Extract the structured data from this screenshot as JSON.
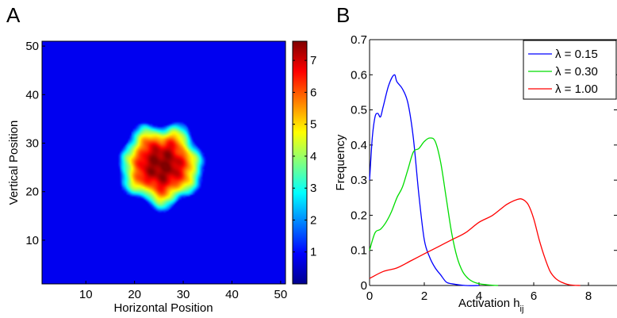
{
  "chart_data": [
    {
      "panel": "A",
      "type": "heatmap",
      "xlabel": "Horizontal Position",
      "ylabel": "Vertical Position",
      "xlim": [
        1,
        51
      ],
      "ylim": [
        1,
        51
      ],
      "xticks": [
        10,
        20,
        30,
        40,
        50
      ],
      "yticks": [
        10,
        20,
        30,
        40,
        50
      ],
      "colorbar": {
        "range": [
          0,
          7.6
        ],
        "ticks": [
          1,
          2,
          3,
          4,
          5,
          6,
          7
        ],
        "colormap": "jet"
      },
      "blob": {
        "center": [
          25.5,
          25.5
        ],
        "peak": 7.5,
        "radius": 9
      }
    },
    {
      "panel": "B",
      "type": "line",
      "xlabel": "Activation h",
      "xlabel_sub": "ij",
      "ylabel": "Frequency",
      "xlim": [
        0,
        9
      ],
      "ylim": [
        0,
        0.7
      ],
      "xticks": [
        0,
        2,
        4,
        6,
        8
      ],
      "yticks": [
        0,
        0.1,
        0.2,
        0.3,
        0.4,
        0.5,
        0.6,
        0.7
      ],
      "legend_position": "top-right",
      "series": [
        {
          "name": "λ = 0.15",
          "color": "#0000ff",
          "x": [
            0,
            0.1,
            0.2,
            0.3,
            0.4,
            0.5,
            0.7,
            0.9,
            1.0,
            1.2,
            1.4,
            1.6,
            1.8,
            2.0,
            2.2,
            2.4,
            2.6,
            2.8,
            3.0,
            3.5,
            4.0
          ],
          "y": [
            0.3,
            0.42,
            0.48,
            0.49,
            0.48,
            0.51,
            0.57,
            0.6,
            0.58,
            0.56,
            0.52,
            0.42,
            0.26,
            0.13,
            0.08,
            0.05,
            0.03,
            0.01,
            0.005,
            0,
            0
          ]
        },
        {
          "name": "λ = 0.30",
          "color": "#00dd00",
          "x": [
            0,
            0.2,
            0.4,
            0.6,
            0.8,
            1.0,
            1.2,
            1.4,
            1.6,
            1.8,
            2.0,
            2.2,
            2.4,
            2.6,
            2.8,
            3.0,
            3.2,
            3.4,
            3.6,
            3.8,
            4.0,
            4.3,
            4.7
          ],
          "y": [
            0.1,
            0.15,
            0.16,
            0.18,
            0.21,
            0.25,
            0.28,
            0.33,
            0.38,
            0.39,
            0.41,
            0.42,
            0.41,
            0.35,
            0.25,
            0.15,
            0.08,
            0.04,
            0.02,
            0.01,
            0.005,
            0.002,
            0
          ]
        },
        {
          "name": "λ = 1.00",
          "color": "#ff0000",
          "x": [
            0,
            0.5,
            1.0,
            1.5,
            2.0,
            2.5,
            3.0,
            3.5,
            4.0,
            4.5,
            5.0,
            5.4,
            5.6,
            5.8,
            6.0,
            6.2,
            6.4,
            6.6,
            6.8,
            7.0,
            7.3,
            7.7
          ],
          "y": [
            0.02,
            0.04,
            0.05,
            0.07,
            0.09,
            0.11,
            0.13,
            0.15,
            0.18,
            0.2,
            0.23,
            0.245,
            0.245,
            0.23,
            0.19,
            0.13,
            0.08,
            0.04,
            0.02,
            0.01,
            0.002,
            0
          ]
        }
      ]
    }
  ]
}
